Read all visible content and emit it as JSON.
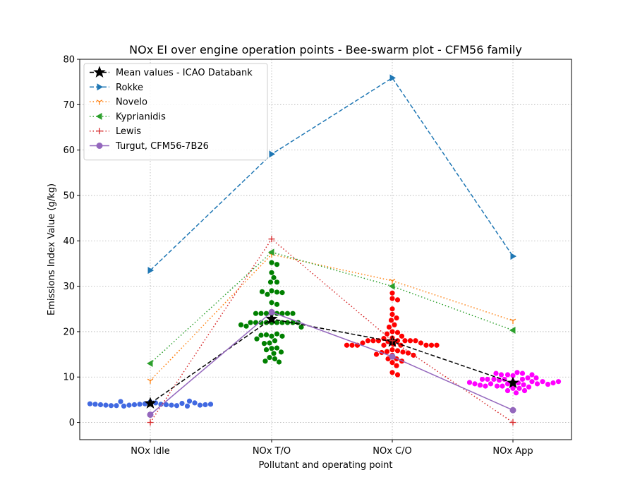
{
  "chart_data": {
    "type": "scatter",
    "title": "NOx EI over engine operation points - Bee-swarm plot - CFM56 family",
    "xlabel": "Pollutant and operating point",
    "ylabel": "Emissions Index Value (g/kg)",
    "categories": [
      "NOx Idle",
      "NOx T/O",
      "NOx C/O",
      "NOx App"
    ],
    "ylim": [
      -3.8,
      80
    ],
    "yticks": [
      0,
      10,
      20,
      30,
      40,
      50,
      60,
      70,
      80
    ],
    "grid": true,
    "legend_position": "top-left",
    "series": [
      {
        "name": "Mean values - ICAO Databank",
        "values": [
          4.2,
          22.8,
          17.8,
          8.7
        ],
        "color": "#000000",
        "line": "dashed",
        "marker": "star"
      },
      {
        "name": "Rokke",
        "values": [
          33.5,
          59.1,
          75.9,
          36.6
        ],
        "color": "#1f77b4",
        "line": "dashed",
        "marker": "triangle-right"
      },
      {
        "name": "Novelo",
        "values": [
          9.2,
          37.0,
          31.2,
          22.4
        ],
        "color": "#ff7f0e",
        "line": "dotted",
        "marker": "tri-down"
      },
      {
        "name": "Kyprianidis",
        "values": [
          13.0,
          37.5,
          30.0,
          20.3
        ],
        "color": "#2ca02c",
        "line": "dotted",
        "marker": "triangle-left"
      },
      {
        "name": "Lewis",
        "values": [
          0.0,
          40.4,
          18.0,
          0.0
        ],
        "color": "#d62728",
        "line": "dotted",
        "marker": "plus"
      },
      {
        "name": "Turgut, CFM56-7B26",
        "values": [
          1.7,
          24.3,
          14.5,
          2.7
        ],
        "color": "#9467bd",
        "line": "solid",
        "marker": "circle"
      }
    ],
    "swarms": [
      {
        "category": "NOx Idle",
        "color": "#4169e1",
        "values": [
          4.5,
          4.3,
          4.1,
          4.0,
          4.0,
          3.9,
          3.9,
          3.8,
          3.8,
          3.7,
          3.6,
          4.6,
          4.2,
          3.7,
          3.6,
          3.7,
          4.7,
          4.3,
          3.8,
          3.8,
          3.9,
          3.9,
          4.0,
          4.0,
          4.1,
          4.3,
          4.5
        ]
      },
      {
        "category": "NOx T/O",
        "color": "#008000",
        "values": [
          35.2,
          34.8,
          33.0,
          31.9,
          30.9,
          30.9,
          29.0,
          28.7,
          28.2,
          28.8,
          28.6,
          26.4,
          26.0,
          24.0,
          24.0,
          24.0,
          24.0,
          24.0,
          24.0,
          24.0,
          24.0,
          22.0,
          22.0,
          22.0,
          22.0,
          22.0,
          22.0,
          22.0,
          22.0,
          22.0,
          22.0,
          21.2,
          21.5,
          21.0,
          19.0,
          19.5,
          19.3,
          19.0,
          19.2,
          18.4,
          18.0,
          17.5,
          17.4,
          16.3,
          16.4,
          16.0,
          15.5,
          15.2,
          14.3,
          14.0,
          13.5,
          13.3
        ]
      },
      {
        "category": "NOx C/O",
        "color": "#ff0000",
        "values": [
          28.5,
          27.3,
          27.0,
          25.0,
          23.8,
          23.0,
          22.5,
          21.5,
          21.0,
          20.0,
          19.8,
          19.5,
          19.0,
          18.6,
          18.5,
          18.0,
          18.0,
          18.0,
          18.0,
          18.0,
          18.0,
          18.0,
          17.8,
          17.5,
          17.5,
          17.2,
          17.0,
          17.0,
          17.0,
          17.0,
          17.0,
          17.0,
          17.0,
          17.0,
          16.0,
          15.8,
          15.6,
          15.5,
          15.4,
          15.3,
          15.0,
          14.8,
          14.8,
          14.0,
          14.0,
          13.5,
          13.2,
          12.5,
          11.0,
          10.5
        ]
      },
      {
        "category": "NOx App",
        "color": "#ff00ff",
        "values": [
          9.0,
          8.7,
          8.5,
          8.3,
          9.5,
          9.5,
          9.3,
          10.3,
          9.8,
          11.0,
          9.0,
          10.5,
          10.8,
          10.5,
          8.0,
          9.5,
          7.5,
          9.8,
          6.5,
          7.8,
          7.0,
          8.0,
          8.5,
          7.5,
          8.5,
          8.0,
          10.5,
          7.0,
          10.8,
          9.0,
          9.5,
          9.5,
          8.2,
          8.4,
          8.5,
          8.7,
          8.8,
          9.0
        ]
      }
    ]
  }
}
